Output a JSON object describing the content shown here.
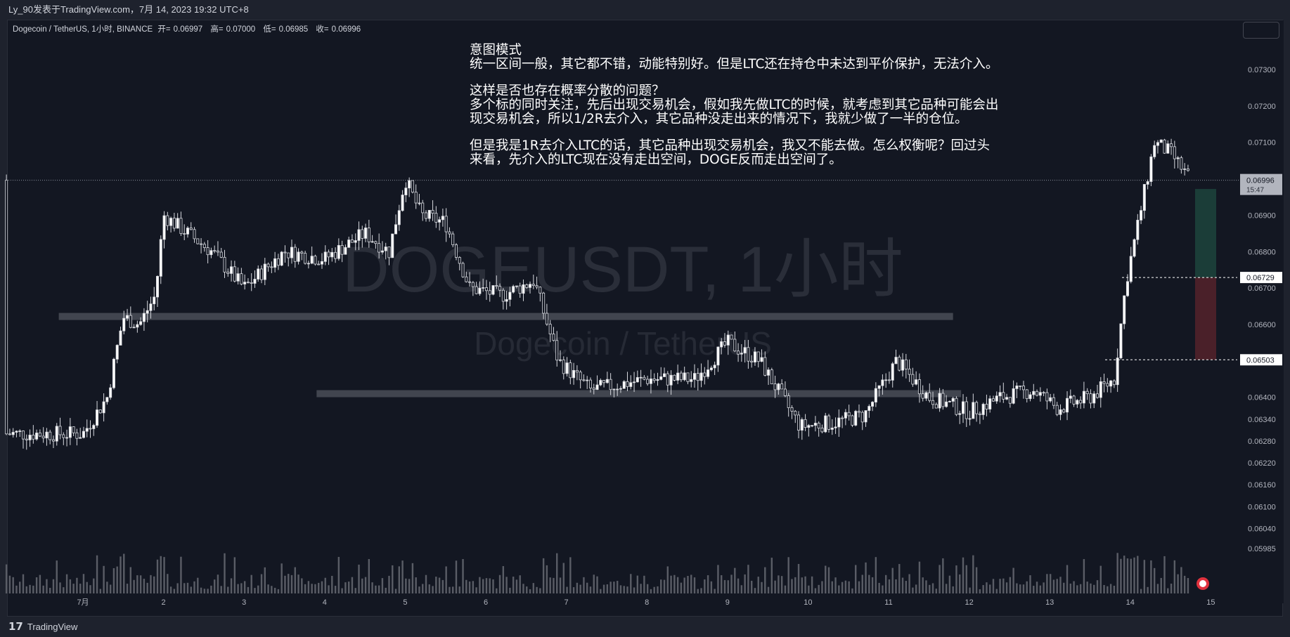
{
  "header": {
    "publisher_line": "Ly_90发表于TradingView.com，7月 14, 2023 19:32 UTC+8"
  },
  "legend": {
    "symbol": "Dogecoin / TetherUS, 1小时, BINANCE",
    "open_label": "开=",
    "open_value": "0.06997",
    "high_label": "高=",
    "high_value": "0.07000",
    "low_label": "低=",
    "low_value": "0.06985",
    "close_label": "收=",
    "close_value": "0.06996"
  },
  "watermark": {
    "main": "DOGEUSDT, 1小时",
    "sub": "Dogecoin / TetherUS"
  },
  "annotation": {
    "lines": [
      "意图模式",
      "统一区间一般，其它都不错，动能特别好。但是LTC还在持仓中未达到平价保护，无法介入。",
      "这样是否也存在概率分散的问题？",
      "多个标的同时关注，先后出现交易机会，假如我先做LTC的时候，就考虑到其它品种可能会出",
      "现交易机会，所以1/2R去介入，其它品种没走出来的情况下，我就少做了一半的仓位。",
      "但是我是1R去介入LTC的话，其它品种出现交易机会，我又不能去做。怎么权衡呢？回过头",
      "来看，先介入的LTC现在没有走出空间，DOGE反而走出空间了。"
    ]
  },
  "price_axis": {
    "ticks": [
      "0.07300",
      "0.07200",
      "0.07100",
      "0.06900",
      "0.06800",
      "0.06700",
      "0.06600",
      "0.06400",
      "0.06340",
      "0.06280",
      "0.06220",
      "0.06160",
      "0.06100",
      "0.06040",
      "0.05985"
    ],
    "current_price": "0.06996",
    "countdown": "15:47",
    "entry_label": "0.06729",
    "stop_label": "0.06503"
  },
  "time_axis": {
    "ticks": [
      "7月",
      "2",
      "3",
      "4",
      "5",
      "6",
      "7",
      "8",
      "9",
      "10",
      "11",
      "12",
      "13",
      "14",
      "15"
    ]
  },
  "footer": {
    "brand": "TradingView"
  },
  "colors": {
    "background": "#131722",
    "up_candle": "#ffffff",
    "down_candle": "#ffffff",
    "zone": "#4a4d57",
    "target_zone": "#1b3d38",
    "stop_zone": "#4a2029",
    "volume": "#5a5d66"
  },
  "chart_data": {
    "type": "candlestick",
    "title": "DOGEUSDT, 1小时",
    "ylim": [
      0.0593,
      0.074
    ],
    "x_days": [
      "7月",
      "2",
      "3",
      "4",
      "5",
      "6",
      "7",
      "8",
      "9",
      "10",
      "11",
      "12",
      "13",
      "14",
      "15"
    ],
    "hourly_close_path": [
      {
        "day": 0.0,
        "price": 0.063
      },
      {
        "day": 0.3,
        "price": 0.064
      },
      {
        "day": 0.5,
        "price": 0.0662
      },
      {
        "day": 0.7,
        "price": 0.066
      },
      {
        "day": 0.9,
        "price": 0.0668
      },
      {
        "day": 1.0,
        "price": 0.069
      },
      {
        "day": 1.3,
        "price": 0.0685
      },
      {
        "day": 1.6,
        "price": 0.068
      },
      {
        "day": 2.0,
        "price": 0.067
      },
      {
        "day": 2.5,
        "price": 0.068
      },
      {
        "day": 3.0,
        "price": 0.0678
      },
      {
        "day": 3.5,
        "price": 0.0685
      },
      {
        "day": 3.8,
        "price": 0.068
      },
      {
        "day": 4.0,
        "price": 0.07
      },
      {
        "day": 4.2,
        "price": 0.069
      },
      {
        "day": 4.5,
        "price": 0.0688
      },
      {
        "day": 4.8,
        "price": 0.067
      },
      {
        "day": 5.2,
        "price": 0.0668
      },
      {
        "day": 5.6,
        "price": 0.0672
      },
      {
        "day": 5.9,
        "price": 0.065
      },
      {
        "day": 6.3,
        "price": 0.0642
      },
      {
        "day": 7.0,
        "price": 0.0645
      },
      {
        "day": 7.6,
        "price": 0.0645
      },
      {
        "day": 8.0,
        "price": 0.0655
      },
      {
        "day": 8.4,
        "price": 0.065
      },
      {
        "day": 8.9,
        "price": 0.0632
      },
      {
        "day": 9.3,
        "price": 0.0633
      },
      {
        "day": 9.7,
        "price": 0.0635
      },
      {
        "day": 10.1,
        "price": 0.065
      },
      {
        "day": 10.5,
        "price": 0.064
      },
      {
        "day": 11.0,
        "price": 0.0636
      },
      {
        "day": 11.4,
        "price": 0.064
      },
      {
        "day": 11.8,
        "price": 0.0642
      },
      {
        "day": 12.1,
        "price": 0.0637
      },
      {
        "day": 12.5,
        "price": 0.064
      },
      {
        "day": 12.8,
        "price": 0.0645
      },
      {
        "day": 12.95,
        "price": 0.0672
      },
      {
        "day": 13.1,
        "price": 0.0688
      },
      {
        "day": 13.3,
        "price": 0.071
      },
      {
        "day": 13.5,
        "price": 0.0707
      },
      {
        "day": 13.75,
        "price": 0.06996
      }
    ],
    "support_zones": [
      {
        "from_day": -0.3,
        "to_day": 10.8,
        "price": 0.06622
      },
      {
        "from_day": 2.9,
        "to_day": 10.9,
        "price": 0.0641
      }
    ],
    "position": {
      "entry": 0.06729,
      "stop": 0.06503,
      "target_top": 0.06972
    },
    "current_price": 0.06996
  }
}
